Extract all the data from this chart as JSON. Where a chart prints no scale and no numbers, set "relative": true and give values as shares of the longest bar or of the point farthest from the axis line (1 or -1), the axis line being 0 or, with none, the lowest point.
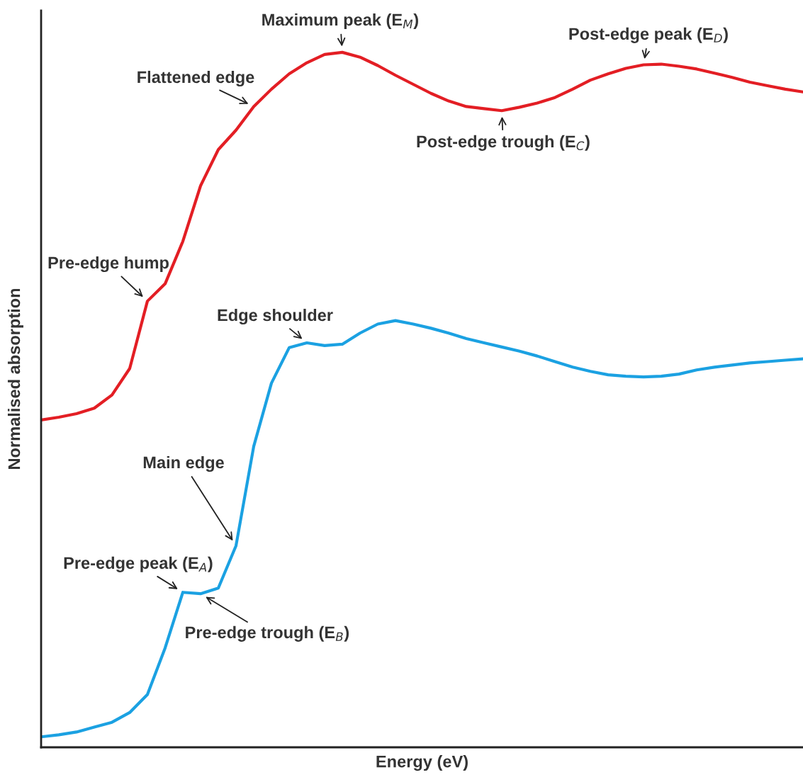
{
  "chart_data": {
    "type": "line",
    "relative": true,
    "xlabel": "Energy (eV)",
    "ylabel": "Normalised absorption",
    "grid": false,
    "legend": false,
    "tick_labels": false,
    "categories": [
      null,
      null,
      null,
      null,
      null,
      null,
      null,
      null,
      null,
      null,
      null,
      null,
      null,
      null,
      null,
      null,
      null,
      null,
      null,
      null,
      null,
      null,
      null,
      null,
      null,
      null,
      null,
      null,
      null,
      null,
      null,
      null,
      null,
      null,
      null,
      null,
      null,
      null,
      null,
      null,
      null,
      null,
      null,
      null
    ],
    "series": [
      {
        "color": "#e31e24",
        "values": [
          0.471,
          0.475,
          0.48,
          0.488,
          0.507,
          0.545,
          0.642,
          0.667,
          0.728,
          0.808,
          0.86,
          0.888,
          0.922,
          0.947,
          0.969,
          0.985,
          0.997,
          1.0,
          0.993,
          0.981,
          0.967,
          0.954,
          0.941,
          0.93,
          0.922,
          0.919,
          0.916,
          0.921,
          0.927,
          0.935,
          0.947,
          0.96,
          0.969,
          0.977,
          0.982,
          0.983,
          0.98,
          0.976,
          0.97,
          0.964,
          0.957,
          0.952,
          0.947,
          0.943
        ]
      },
      {
        "color": "#1ba1e2",
        "values": [
          0.015,
          0.018,
          0.022,
          0.029,
          0.036,
          0.05,
          0.076,
          0.143,
          0.223,
          0.221,
          0.229,
          0.29,
          0.433,
          0.524,
          0.575,
          0.582,
          0.578,
          0.58,
          0.596,
          0.609,
          0.614,
          0.609,
          0.603,
          0.596,
          0.588,
          0.582,
          0.576,
          0.57,
          0.563,
          0.555,
          0.547,
          0.541,
          0.536,
          0.534,
          0.533,
          0.534,
          0.537,
          0.543,
          0.547,
          0.55,
          0.553,
          0.555,
          0.557,
          0.559
        ]
      }
    ],
    "annotations": [
      "Maximum peak (E$_{M}$)",
      "Post-edge peak (E$_{D}$)",
      "Flattened edge",
      "Post-edge trough (E$_{C}$)",
      "Pre-edge hump",
      "Edge shoulder",
      "Main edge",
      "Pre-edge peak (E$_{A}$)",
      "Pre-edge trough (E$_{B}$)"
    ]
  }
}
